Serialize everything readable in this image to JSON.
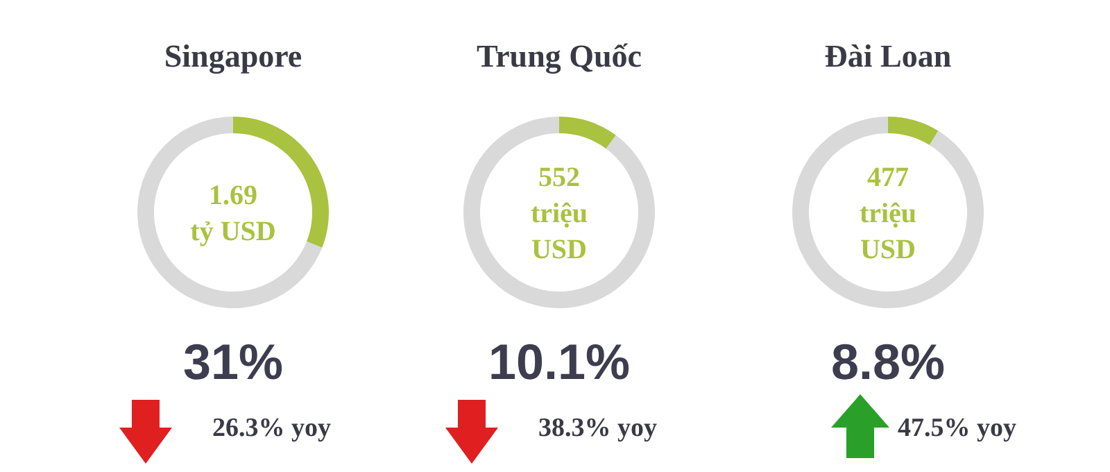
{
  "chart_data": [
    {
      "type": "donut",
      "title": "Singapore",
      "categories": [
        null,
        null
      ],
      "values": [
        31,
        69
      ],
      "colors": [
        "#a9c23f",
        "#d9d9d9"
      ],
      "annotations": [
        "1.69\ntỷ USD",
        "31%",
        "26.3% yoy"
      ]
    },
    {
      "type": "donut",
      "title": "Trung Quốc",
      "categories": [
        null,
        null
      ],
      "values": [
        10.1,
        89.9
      ],
      "colors": [
        "#a9c23f",
        "#d9d9d9"
      ],
      "annotations": [
        "552\ntriệu\nUSD",
        "10.1%",
        "38.3% yoy"
      ]
    },
    {
      "type": "donut",
      "title": "Đài Loan",
      "categories": [
        null,
        null
      ],
      "values": [
        8.8,
        91.2
      ],
      "colors": [
        "#a9c23f",
        "#d9d9d9"
      ],
      "annotations": [
        "477\ntriệu\nUSD",
        "8.8%",
        "47.5% yoy"
      ]
    }
  ]
}
